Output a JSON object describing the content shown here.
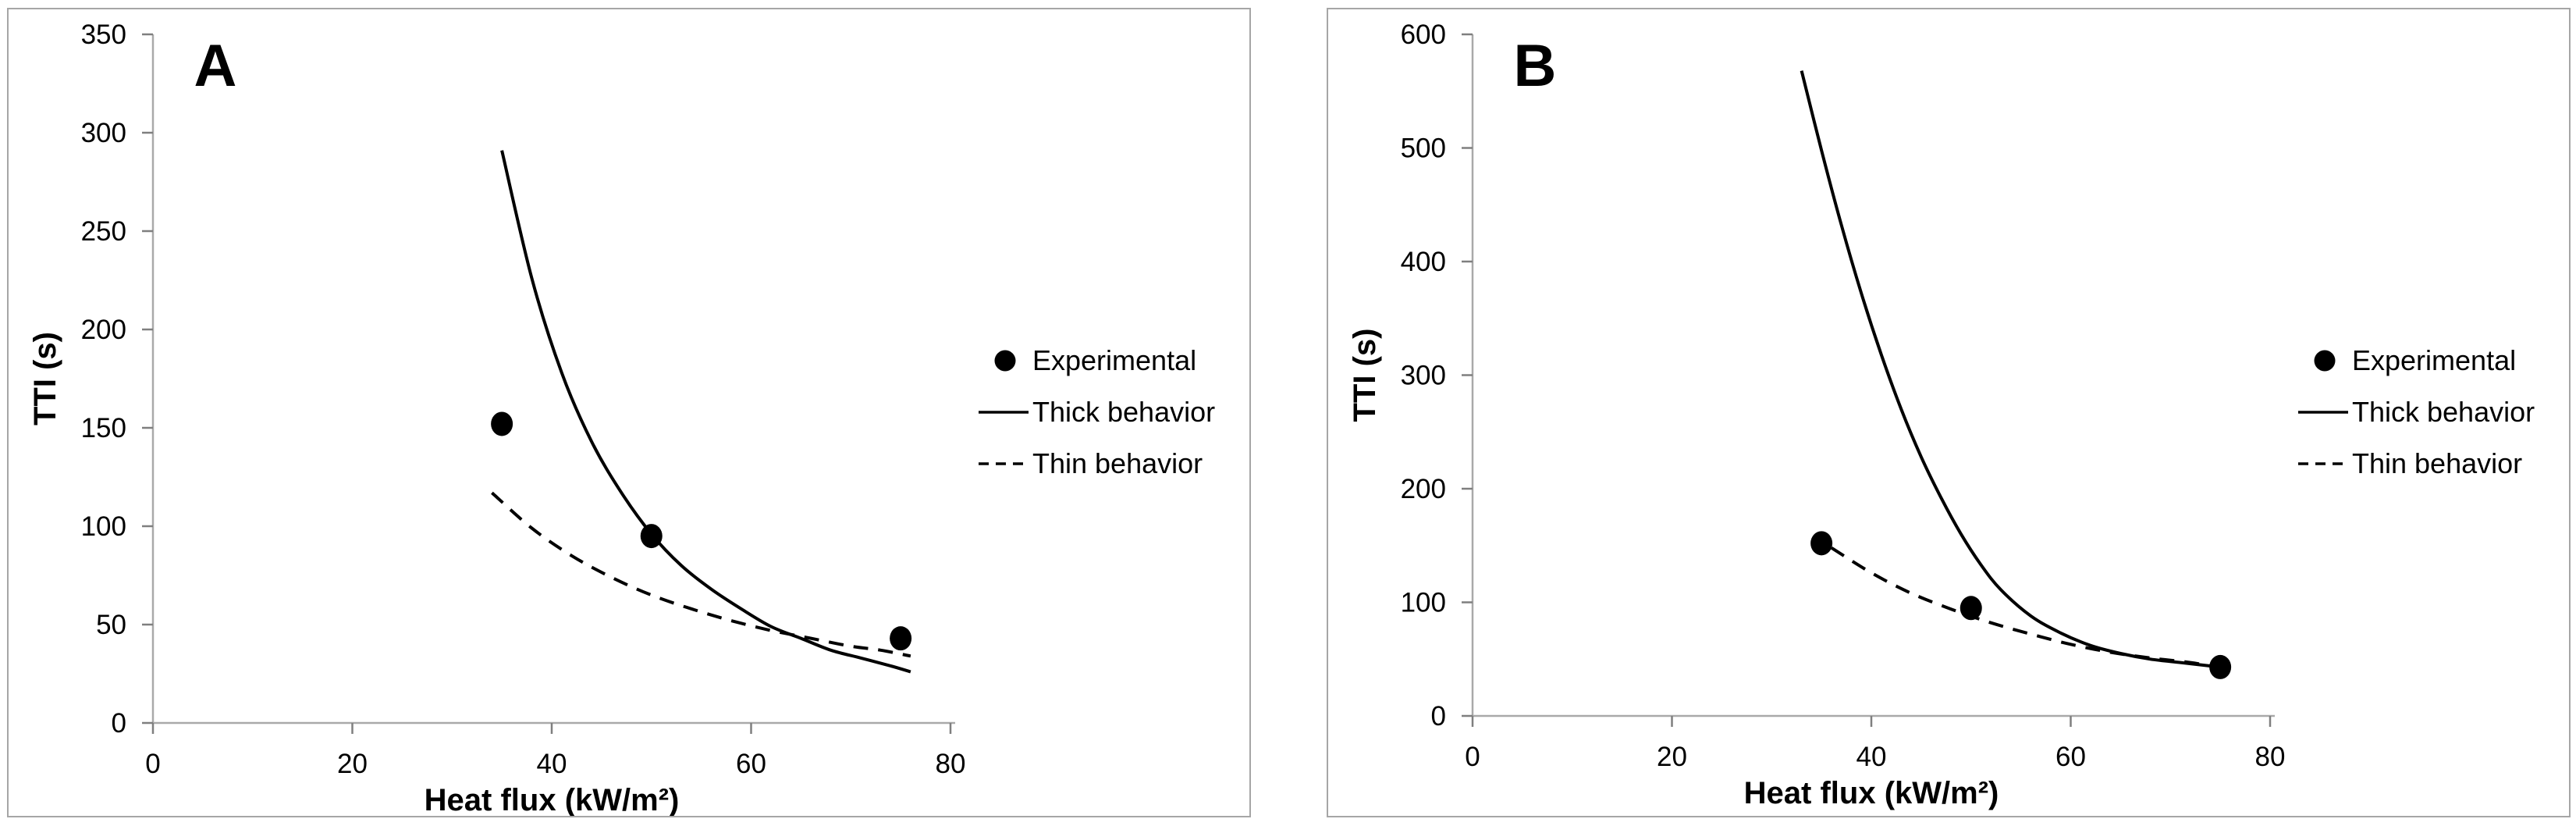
{
  "figure": {
    "description": "Two-panel scientific figure comparing experimental ignition times with thermally thick and thin model predictions",
    "colors": {
      "series": "#000000",
      "axis_line": "#a9a9a9",
      "tick": "#7f7f7f",
      "text": "#000000",
      "panel_border": "#a6a6a6",
      "background": "#ffffff"
    }
  },
  "chart_data": [
    {
      "type": "line",
      "panel_label": "A",
      "xlabel": "Heat flux (kW/m²)",
      "ylabel": "TTI (s)",
      "xlim": [
        0,
        80
      ],
      "ylim": [
        0,
        350
      ],
      "x_ticks": [
        0,
        20,
        40,
        60,
        80
      ],
      "y_ticks": [
        0,
        50,
        100,
        150,
        200,
        250,
        300,
        350
      ],
      "grid": false,
      "legend_position": "right-center",
      "legend": [
        {
          "label": "Experimental",
          "marker": "filled-circle"
        },
        {
          "label": "Thick behavior",
          "marker": "solid-line"
        },
        {
          "label": "Thin behavior",
          "marker": "dashed-line"
        }
      ],
      "series": [
        {
          "name": "Experimental",
          "type": "scatter",
          "marker": "circle",
          "color": "#000000",
          "points": [
            [
              35,
              152
            ],
            [
              50,
              95
            ],
            [
              75,
              43
            ]
          ]
        },
        {
          "name": "Thick behavior",
          "type": "line",
          "style": "solid",
          "color": "#000000",
          "points": [
            [
              35,
              291
            ],
            [
              38,
              226
            ],
            [
              41,
              178
            ],
            [
              44,
              143
            ],
            [
              47,
              117
            ],
            [
              50,
              96
            ],
            [
              53,
              80
            ],
            [
              56,
              68
            ],
            [
              59,
              58
            ],
            [
              62,
              49
            ],
            [
              65,
              43
            ],
            [
              68,
              37
            ],
            [
              71,
              33
            ],
            [
              74,
              29
            ],
            [
              76,
              26
            ]
          ]
        },
        {
          "name": "Thin behavior",
          "type": "line",
          "style": "dashed",
          "color": "#000000",
          "points": [
            [
              34,
              117
            ],
            [
              38,
              99
            ],
            [
              42,
              85
            ],
            [
              46,
              74
            ],
            [
              50,
              65
            ],
            [
              54,
              58
            ],
            [
              58,
              52
            ],
            [
              62,
              47
            ],
            [
              66,
              43
            ],
            [
              70,
              39
            ],
            [
              73,
              37
            ],
            [
              76,
              34
            ]
          ]
        }
      ]
    },
    {
      "type": "line",
      "panel_label": "B",
      "xlabel": "Heat flux (kW/m²)",
      "ylabel": "TTI (s)",
      "xlim": [
        0,
        80
      ],
      "ylim": [
        0,
        600
      ],
      "x_ticks": [
        0,
        20,
        40,
        60,
        80
      ],
      "y_ticks": [
        0,
        100,
        200,
        300,
        400,
        500,
        600
      ],
      "grid": false,
      "legend_position": "right-center",
      "legend": [
        {
          "label": "Experimental",
          "marker": "filled-circle"
        },
        {
          "label": "Thick behavior",
          "marker": "solid-line"
        },
        {
          "label": "Thin behavior",
          "marker": "dashed-line"
        }
      ],
      "series": [
        {
          "name": "Experimental",
          "type": "scatter",
          "marker": "circle",
          "color": "#000000",
          "points": [
            [
              35,
              152
            ],
            [
              50,
              95
            ],
            [
              75,
              43
            ]
          ]
        },
        {
          "name": "Thick behavior",
          "type": "line",
          "style": "solid",
          "color": "#000000",
          "points": [
            [
              33,
              568
            ],
            [
              35,
              498
            ],
            [
              37,
              432
            ],
            [
              39,
              372
            ],
            [
              41,
              318
            ],
            [
              43,
              270
            ],
            [
              45,
              228
            ],
            [
              47,
              192
            ],
            [
              49,
              160
            ],
            [
              51,
              133
            ],
            [
              53,
              111
            ],
            [
              56,
              88
            ],
            [
              59,
              73
            ],
            [
              62,
              62
            ],
            [
              65,
              55
            ],
            [
              68,
              50
            ],
            [
              71,
              47
            ],
            [
              74,
              44
            ]
          ]
        },
        {
          "name": "Thin behavior",
          "type": "line",
          "style": "dashed",
          "color": "#000000",
          "points": [
            [
              36,
              148
            ],
            [
              40,
              126
            ],
            [
              44,
              108
            ],
            [
              48,
              94
            ],
            [
              52,
              82
            ],
            [
              56,
              72
            ],
            [
              60,
              63
            ],
            [
              64,
              56
            ],
            [
              68,
              51
            ],
            [
              72,
              47
            ],
            [
              74,
              44
            ]
          ]
        }
      ]
    }
  ]
}
